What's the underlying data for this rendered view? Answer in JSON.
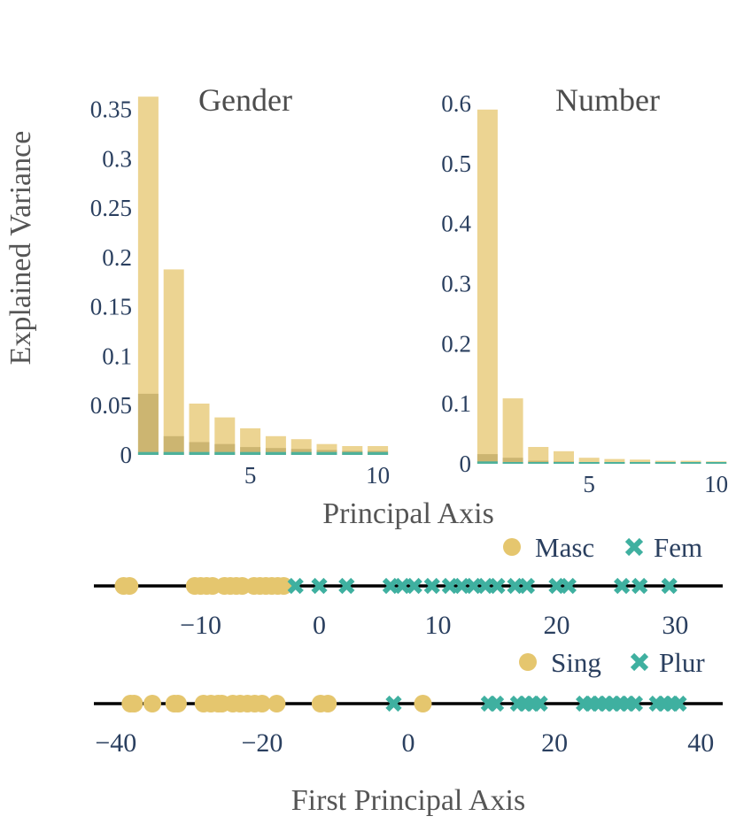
{
  "colors": {
    "gold": "#e5c66e",
    "teal": "#3fb0a0",
    "tick_text": "#2a3f5f",
    "title_text": "#4d4d4d",
    "line": "#000000"
  },
  "axis_titles": {
    "y": "Explained Variance",
    "x_top": "Principal Axis",
    "x_bottom": "First Principal Axis"
  },
  "chart_data": [
    {
      "type": "bar",
      "title": "Gender",
      "xlabel": "Principal Axis",
      "ylabel": "Explained Variance",
      "x": [
        1,
        2,
        3,
        4,
        5,
        6,
        7,
        8,
        9,
        10
      ],
      "xlim": [
        0.5,
        10.5
      ],
      "ylim": [
        0,
        0.365
      ],
      "xticks": [
        5,
        10
      ],
      "xtick_labels": [
        "5",
        "10"
      ],
      "yticks": [
        0,
        0.05,
        0.1,
        0.15,
        0.2,
        0.25,
        0.3,
        0.35
      ],
      "ytick_labels": [
        "0",
        "0.05",
        "0.1",
        "0.15",
        "0.2",
        "0.25",
        "0.3",
        "0.35"
      ],
      "series": [
        {
          "name": "gold",
          "color": "#e5c66e",
          "values": [
            0.363,
            0.188,
            0.052,
            0.038,
            0.027,
            0.019,
            0.016,
            0.011,
            0.009,
            0.009
          ]
        },
        {
          "name": "dark",
          "color": "#b39a55",
          "values": [
            0.062,
            0.019,
            0.013,
            0.011,
            0.008,
            0.007,
            0.006,
            0.005,
            0.004,
            0.004
          ]
        },
        {
          "name": "teal",
          "color": "#3fb0a0",
          "values": [
            0.003,
            0.003,
            0.003,
            0.003,
            0.003,
            0.003,
            0.003,
            0.003,
            0.003,
            0.003
          ]
        }
      ]
    },
    {
      "type": "bar",
      "title": "Number",
      "xlabel": "Principal Axis",
      "x": [
        1,
        2,
        3,
        4,
        5,
        6,
        7,
        8,
        9,
        10
      ],
      "xlim": [
        0.5,
        10.5
      ],
      "ylim": [
        0,
        0.6
      ],
      "xticks": [
        5,
        10
      ],
      "xtick_labels": [
        "5",
        "10"
      ],
      "yticks": [
        0,
        0.1,
        0.2,
        0.3,
        0.4,
        0.5,
        0.6
      ],
      "ytick_labels": [
        "0",
        "0.1",
        "0.2",
        "0.3",
        "0.4",
        "0.5",
        "0.6"
      ],
      "series": [
        {
          "name": "gold",
          "color": "#e5c66e",
          "values": [
            0.59,
            0.109,
            0.028,
            0.021,
            0.01,
            0.008,
            0.007,
            0.005,
            0.005,
            0.004
          ]
        },
        {
          "name": "dark",
          "color": "#b39a55",
          "values": [
            0.016,
            0.01,
            0.005,
            0.004,
            0.003,
            0.003,
            0.003,
            0.002,
            0.002,
            0.002
          ]
        },
        {
          "name": "teal",
          "color": "#3fb0a0",
          "values": [
            0.004,
            0.003,
            0.003,
            0.003,
            0.003,
            0.003,
            0.003,
            0.003,
            0.003,
            0.003
          ]
        }
      ]
    },
    {
      "type": "scatter",
      "title": "",
      "xlim": [
        -19,
        34
      ],
      "xticks": [
        -10,
        0,
        10,
        20,
        30
      ],
      "xtick_labels": [
        "−10",
        "0",
        "10",
        "20",
        "30"
      ],
      "legend": [
        "Masc",
        "Fem"
      ],
      "series": [
        {
          "name": "Masc",
          "marker": "circle",
          "color": "#e5c66e",
          "x": [
            -16.5,
            -16,
            -10.5,
            -10,
            -9.5,
            -9,
            -8,
            -7.5,
            -7,
            -6.5,
            -5.5,
            -5,
            -4.5,
            -4,
            -3.5,
            -3
          ]
        },
        {
          "name": "Fem",
          "marker": "x",
          "color": "#3fb0a0",
          "x": [
            -2,
            0,
            2.3,
            6,
            7,
            8,
            9.5,
            11,
            12,
            13,
            14,
            15,
            16.5,
            17.5,
            20,
            21,
            25.5,
            27,
            29.5
          ]
        }
      ]
    },
    {
      "type": "scatter",
      "title": "",
      "xlabel": "First Principal Axis",
      "xlim": [
        -43,
        43
      ],
      "xticks": [
        -40,
        -20,
        0,
        20,
        40
      ],
      "xtick_labels": [
        "−40",
        "−20",
        "0",
        "20",
        "40"
      ],
      "legend": [
        "Sing",
        "Plur"
      ],
      "series": [
        {
          "name": "Sing",
          "marker": "circle",
          "color": "#e5c66e",
          "x": [
            -38,
            -37.5,
            -35,
            -32,
            -31.5,
            -28,
            -27,
            -26,
            -25.5,
            -24,
            -23,
            -22,
            -21,
            -20,
            -18,
            -12,
            -11,
            2
          ]
        },
        {
          "name": "Plur",
          "marker": "x",
          "color": "#3fb0a0",
          "x": [
            -2,
            11,
            12,
            15,
            16,
            17,
            18,
            24,
            25,
            26,
            27,
            28,
            29,
            30,
            31,
            34,
            35,
            36,
            37
          ]
        }
      ]
    }
  ]
}
